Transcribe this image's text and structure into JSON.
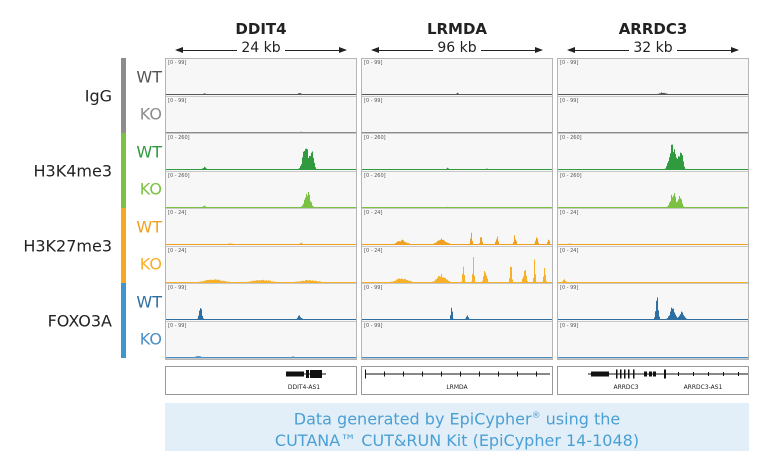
{
  "chart_data": {
    "type": "genome-browser-tracks",
    "loci": [
      {
        "gene": "DDIT4",
        "span_label": "24 kb",
        "span_kb": 24,
        "annotations": [
          "DDIT4-AS1"
        ]
      },
      {
        "gene": "LRMDA",
        "span_label": "96 kb",
        "span_kb": 96,
        "annotations": [
          "LRMDA"
        ]
      },
      {
        "gene": "ARRDC3",
        "span_label": "32 kb",
        "span_kb": 32,
        "annotations": [
          "ARRDC3",
          "ARRDC3-AS1"
        ]
      }
    ],
    "groups": [
      {
        "target": "IgG",
        "color": "#8c8c8c",
        "conditions": [
          {
            "label": "WT",
            "color": "#555555",
            "range": "[0 - 99]",
            "max": 99,
            "peaks": [
              [
                [
                  4.8,
                  5,
                  0.4
                ],
                [
                  16.8,
                  5,
                  0.6
                ]
              ],
              [
                [
                  48,
                  6,
                  1.5
                ]
              ],
              [
                [
                  17.6,
                  8,
                  1.5
                ]
              ]
            ]
          },
          {
            "label": "KO",
            "color": "#8c8c8c",
            "range": "[0 - 99]",
            "max": 99,
            "peaks": [
              [
                [
                  17,
                  3,
                  0.5
                ]
              ],
              [],
              []
            ]
          }
        ]
      },
      {
        "target": "H3K4me3",
        "color": "#7cc242",
        "conditions": [
          {
            "label": "WT",
            "color": "#2f9a3e",
            "range": "[0 - 260]",
            "max": 260,
            "peaks": [
              [
                [
                  4.8,
                  25,
                  0.5
                ],
                [
                  17.6,
                  230,
                  1.0
                ],
                [
                  18.4,
                  150,
                  0.6
                ]
              ],
              [
                [
                  43,
                  15,
                  1.5
                ],
                [
                  63,
                  10,
                  1.2
                ]
              ],
              [
                [
                  19.2,
                  240,
                  1.4
                ],
                [
                  20.6,
                  200,
                  0.9
                ]
              ]
            ]
          },
          {
            "label": "KO",
            "color": "#7cc242",
            "range": "[0 - 260]",
            "max": 260,
            "peaks": [
              [
                [
                  4.8,
                  18,
                  0.5
                ],
                [
                  17.8,
                  170,
                  0.9
                ]
              ],
              [
                [
                  43,
                  8,
                  1.5
                ]
              ],
              [
                [
                  19.3,
                  150,
                  1.2
                ],
                [
                  20.5,
                  120,
                  0.8
                ]
              ]
            ]
          }
        ]
      },
      {
        "target": "H3K27me3",
        "color": "#f7a823",
        "conditions": [
          {
            "label": "WT",
            "color": "#f0a020",
            "range": "[0 - 24]",
            "max": 24,
            "peaks": [
              [
                [
                  8,
                  1,
                  1
                ],
                [
                  17,
                  1.5,
                  0.5
                ]
              ],
              [
                [
                  20,
                  4,
                  6
                ],
                [
                  40,
                  5,
                  6
                ],
                [
                  55,
                  10,
                  1.2
                ],
                [
                  60,
                  9,
                  1.2
                ],
                [
                  68,
                  7,
                  1.5
                ],
                [
                  77,
                  8,
                  1.5
                ],
                [
                  88,
                  7,
                  1.5
                ],
                [
                  94,
                  6,
                  1.2
                ]
              ],
              [
                [
                  2,
                  1,
                  1
                ]
              ]
            ]
          },
          {
            "label": "KO",
            "color": "#f7b028",
            "range": "[0 - 24]",
            "max": 24,
            "peaks": [
              [
                [
                  6,
                  3,
                  3
                ],
                [
                  12,
                  2.5,
                  3
                ],
                [
                  18,
                  2,
                  3
                ]
              ],
              [
                [
                  20,
                  4,
                  8
                ],
                [
                  40,
                  7,
                  6
                ],
                [
                  51,
                  15,
                  1.2
                ],
                [
                  56,
                  22,
                  1.0
                ],
                [
                  62,
                  12,
                  2
                ],
                [
                  75,
                  16,
                  1.2
                ],
                [
                  82,
                  12,
                  2
                ],
                [
                  87,
                  21,
                  1.0
                ],
                [
                  92,
                  18,
                  1.2
                ]
              ],
              [
                [
                  1,
                  3,
                  0.6
                ]
              ]
            ]
          }
        ]
      },
      {
        "target": "FOXO3A",
        "color": "#3f96cf",
        "conditions": [
          {
            "label": "WT",
            "color": "#2e6fa3",
            "range": "[0 - 99]",
            "max": 99,
            "peaks": [
              [
                [
                  4.3,
                  45,
                  0.5
                ],
                [
                  16.8,
                  15,
                  0.6
                ]
              ],
              [
                [
                  45,
                  50,
                  1.2
                ],
                [
                  53,
                  15,
                  1.5
                ]
              ],
              [
                [
                  16.6,
                  80,
                  0.6
                ],
                [
                  19.2,
                  45,
                  1.2
                ],
                [
                  20.8,
                  30,
                  1.0
                ]
              ]
            ]
          },
          {
            "label": "KO",
            "color": "#4a8fc4",
            "range": "[0 - 99]",
            "max": 99,
            "peaks": [
              [
                [
                  4,
                  5,
                  1
                ],
                [
                  16,
                  4,
                  0.6
                ]
              ],
              [],
              []
            ]
          }
        ]
      }
    ]
  },
  "caption": {
    "line1_before": "Data generated by EpiCypher",
    "line1_reg": "®",
    "line1_after": " using the",
    "line2": "CUTANA™ CUT&RUN Kit (EpiCypher 14-1048)"
  }
}
